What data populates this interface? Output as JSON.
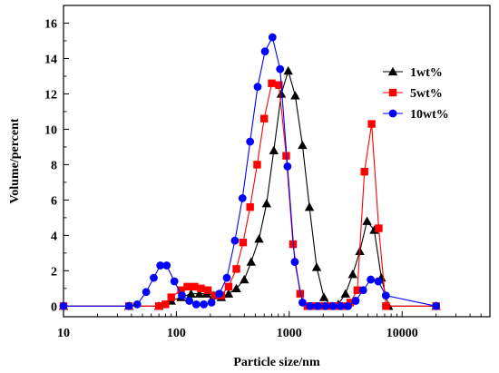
{
  "chart_data": {
    "type": "line",
    "title": "",
    "xlabel": "Particle size/nm",
    "ylabel": "Volume/percent",
    "x_scale": "log",
    "xlim": [
      10,
      60000
    ],
    "ylim": [
      -0.6,
      17
    ],
    "x_ticks": [
      10,
      100,
      1000,
      10000
    ],
    "x_tick_labels": [
      "10",
      "100",
      "1000",
      "10000"
    ],
    "y_ticks": [
      0,
      2,
      4,
      6,
      8,
      10,
      12,
      14,
      16
    ],
    "y_tick_labels": [
      "0",
      "2",
      "4",
      "6",
      "8",
      "10",
      "12",
      "14",
      "16"
    ],
    "grid": false,
    "legend_position": "top-right",
    "series": [
      {
        "name": "1wt%",
        "color": "#000000",
        "marker": "triangle",
        "x": [
          10,
          38,
          70,
          90,
          110,
          135,
          160,
          185,
          215,
          250,
          290,
          340,
          400,
          460,
          540,
          630,
          730,
          850,
          980,
          1130,
          1310,
          1510,
          1750,
          2030,
          2350,
          2720,
          3150,
          3650,
          4220,
          4890,
          5660,
          6550,
          7580,
          20000
        ],
        "y": [
          0,
          0,
          0,
          0.3,
          0.5,
          0.7,
          0.7,
          0.7,
          0.6,
          0.5,
          0.7,
          1.0,
          1.5,
          2.5,
          3.8,
          5.8,
          8.8,
          12.0,
          13.3,
          11.9,
          9.1,
          5.6,
          2.2,
          0.5,
          0,
          0.1,
          0.7,
          1.8,
          3.1,
          4.8,
          4.3,
          1.6,
          0,
          0
        ]
      },
      {
        "name": "5wt%",
        "color": "#ff0000",
        "marker": "square",
        "x": [
          10,
          38,
          70,
          80,
          90,
          110,
          125,
          145,
          165,
          190,
          220,
          250,
          290,
          340,
          390,
          450,
          520,
          600,
          700,
          810,
          940,
          1080,
          1250,
          1450,
          1670,
          1940,
          2240,
          2590,
          3000,
          3470,
          4010,
          4640,
          5370,
          6210,
          7190,
          20000
        ],
        "y": [
          0,
          0,
          0,
          0.1,
          0.5,
          0.9,
          1.1,
          1.1,
          1.0,
          0.9,
          0.6,
          0.6,
          1.1,
          2.1,
          3.6,
          5.6,
          8.0,
          10.6,
          12.6,
          12.5,
          8.5,
          3.5,
          0.7,
          0,
          0,
          0,
          0,
          0,
          0,
          0.2,
          0.9,
          7.6,
          10.3,
          4.4,
          0,
          0
        ]
      },
      {
        "name": "10wt%",
        "color": "#0000ff",
        "marker": "circle",
        "x": [
          10,
          38,
          45,
          54,
          63,
          72,
          82,
          96,
          112,
          130,
          150,
          175,
          205,
          240,
          280,
          330,
          385,
          450,
          525,
          610,
          710,
          830,
          965,
          1120,
          1310,
          1530,
          1790,
          2090,
          2440,
          2850,
          3320,
          3880,
          4520,
          5270,
          6150,
          7180,
          20000
        ],
        "y": [
          0,
          0,
          0.1,
          0.8,
          1.6,
          2.3,
          2.3,
          1.4,
          0.6,
          0.3,
          0.1,
          0.1,
          0.2,
          0.7,
          1.6,
          3.7,
          6.1,
          9.3,
          12.4,
          14.4,
          15.2,
          13.4,
          7.9,
          2.5,
          0.2,
          0,
          0,
          0,
          0,
          0,
          0,
          0.3,
          0.9,
          1.5,
          1.4,
          0.6,
          0
        ]
      }
    ]
  }
}
